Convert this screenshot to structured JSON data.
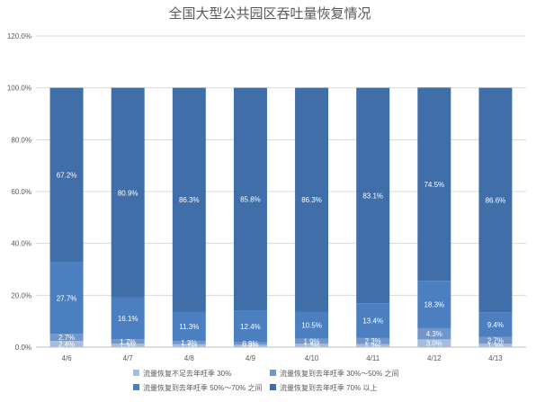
{
  "chart_data": {
    "type": "bar",
    "stacked": true,
    "title": "全国大型公共园区吞吐量恢复情况",
    "xlabel": "",
    "ylabel": "",
    "ylim": [
      0,
      120
    ],
    "y_ticks": [
      "0.0%",
      "20.0%",
      "40.0%",
      "60.0%",
      "80.0%",
      "100.0%",
      "120.0%"
    ],
    "grid": true,
    "legend_position": "bottom",
    "categories": [
      "4/6",
      "4/7",
      "4/8",
      "4/9",
      "4/10",
      "4/11",
      "4/12",
      "4/13"
    ],
    "series": [
      {
        "name": "流量恢复不足去年旺季 30%",
        "color": "#a8bcdb",
        "values": [
          2.4,
          1.3,
          1.1,
          0.9,
          1.3,
          1.2,
          3.0,
          1.3
        ],
        "labels": [
          "2.4%",
          "1.3%",
          "1.1%",
          "0.9%",
          "1.3%",
          "1.2%",
          "3.0%",
          "1.3%"
        ]
      },
      {
        "name": "流量恢复到去年旺季 30%～50% 之间",
        "color": "#7396c8",
        "values": [
          2.7,
          1.7,
          1.3,
          0.9,
          1.9,
          2.3,
          4.3,
          2.7
        ],
        "labels": [
          "2.7%",
          "1.7%",
          "1.3%",
          "0.9%",
          "1.9%",
          "2.3%",
          "4.3%",
          "2.7%"
        ]
      },
      {
        "name": "流量恢复到去年旺季 50%～70% 之间",
        "color": "#4c7fc0",
        "values": [
          27.7,
          16.1,
          11.3,
          12.4,
          10.5,
          13.4,
          18.3,
          9.4
        ],
        "labels": [
          "27.7%",
          "16.1%",
          "11.3%",
          "12.4%",
          "10.5%",
          "13.4%",
          "18.3%",
          "9.4%"
        ]
      },
      {
        "name": "流量恢复到去年旺季 70% 以上",
        "color": "#3f6ea9",
        "values": [
          67.2,
          80.9,
          86.3,
          85.8,
          86.3,
          83.1,
          74.5,
          86.6
        ],
        "labels": [
          "67.2%",
          "80.9%",
          "86.3%",
          "85.8%",
          "86.3%",
          "83.1%",
          "74.5%",
          "86.6%"
        ]
      }
    ]
  }
}
